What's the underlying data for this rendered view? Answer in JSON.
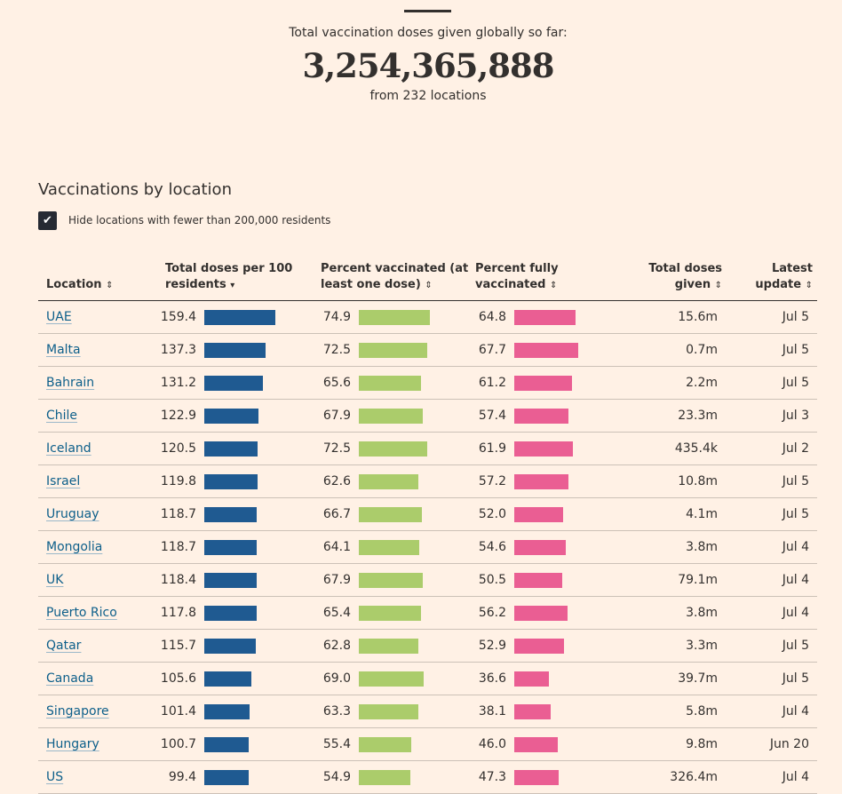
{
  "header": {
    "label": "Total vaccination doses given globally so far:",
    "total": "3,254,365,888",
    "sub": "from 232 locations"
  },
  "section": {
    "title": "Vaccinations by location",
    "hide_label": "Hide locations with fewer than 200,000 residents",
    "hide_checked": true
  },
  "columns": {
    "location": "Location",
    "doses_line1": "Total doses per 100",
    "doses_line2": "residents",
    "pct_line1": "Percent vaccinated (at",
    "pct_line2": "least one dose)",
    "full_line1": "Percent fully",
    "full_line2": "vaccinated",
    "total_line1": "Total doses",
    "total_line2": "given",
    "update_line1": "Latest",
    "update_line2": "update"
  },
  "colors": {
    "doses_bar": "#1f5a91",
    "pct_bar": "#abcc6b",
    "full_bar": "#ea5e93",
    "background": "#fff1e5"
  },
  "rows": [
    {
      "location": "UAE",
      "doses": "159.4",
      "pct": "74.9",
      "full": "64.8",
      "total": "15.6m",
      "update": "Jul 5"
    },
    {
      "location": "Malta",
      "doses": "137.3",
      "pct": "72.5",
      "full": "67.7",
      "total": "0.7m",
      "update": "Jul 5"
    },
    {
      "location": "Bahrain",
      "doses": "131.2",
      "pct": "65.6",
      "full": "61.2",
      "total": "2.2m",
      "update": "Jul 5"
    },
    {
      "location": "Chile",
      "doses": "122.9",
      "pct": "67.9",
      "full": "57.4",
      "total": "23.3m",
      "update": "Jul 3"
    },
    {
      "location": "Iceland",
      "doses": "120.5",
      "pct": "72.5",
      "full": "61.9",
      "total": "435.4k",
      "update": "Jul 2"
    },
    {
      "location": "Israel",
      "doses": "119.8",
      "pct": "62.6",
      "full": "57.2",
      "total": "10.8m",
      "update": "Jul 5"
    },
    {
      "location": "Uruguay",
      "doses": "118.7",
      "pct": "66.7",
      "full": "52.0",
      "total": "4.1m",
      "update": "Jul 5"
    },
    {
      "location": "Mongolia",
      "doses": "118.7",
      "pct": "64.1",
      "full": "54.6",
      "total": "3.8m",
      "update": "Jul 4"
    },
    {
      "location": "UK",
      "doses": "118.4",
      "pct": "67.9",
      "full": "50.5",
      "total": "79.1m",
      "update": "Jul 4"
    },
    {
      "location": "Puerto Rico",
      "doses": "117.8",
      "pct": "65.4",
      "full": "56.2",
      "total": "3.8m",
      "update": "Jul 4"
    },
    {
      "location": "Qatar",
      "doses": "115.7",
      "pct": "62.8",
      "full": "52.9",
      "total": "3.3m",
      "update": "Jul 5"
    },
    {
      "location": "Canada",
      "doses": "105.6",
      "pct": "69.0",
      "full": "36.6",
      "total": "39.7m",
      "update": "Jul 5"
    },
    {
      "location": "Singapore",
      "doses": "101.4",
      "pct": "63.3",
      "full": "38.1",
      "total": "5.8m",
      "update": "Jul 4"
    },
    {
      "location": "Hungary",
      "doses": "100.7",
      "pct": "55.4",
      "full": "46.0",
      "total": "9.8m",
      "update": "Jun 20"
    },
    {
      "location": "US",
      "doses": "99.4",
      "pct": "54.9",
      "full": "47.3",
      "total": "326.4m",
      "update": "Jul 4"
    }
  ]
}
